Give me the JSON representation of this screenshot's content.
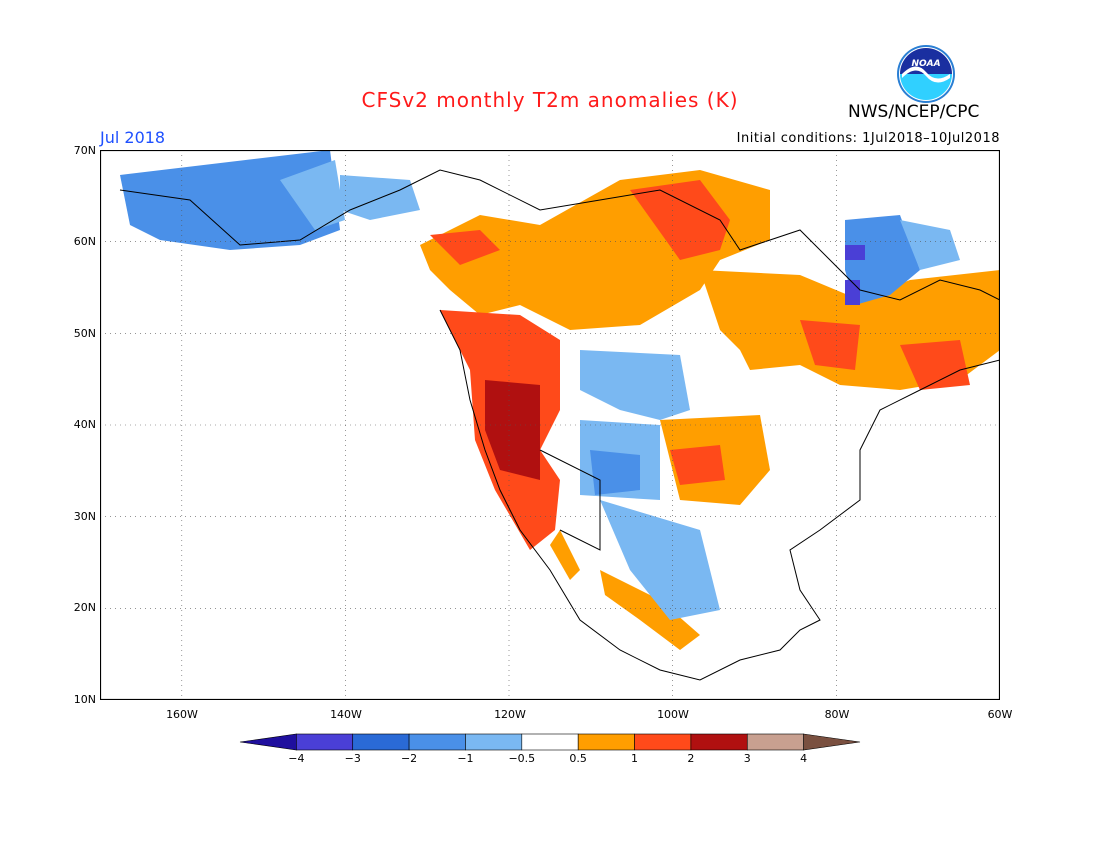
{
  "title": "CFSv2 monthly T2m anomalies (K)",
  "agency": "NWS/NCEP/CPC",
  "logo_text": "NOAA",
  "month": "Jul 2018",
  "initial_conditions": "Initial conditions: 1Jul2018–10Jul2018",
  "lat_labels": [
    "70N",
    "60N",
    "50N",
    "40N",
    "30N",
    "20N",
    "10N"
  ],
  "lon_labels": [
    "160W",
    "140W",
    "120W",
    "100W",
    "80W",
    "60W"
  ],
  "colorbar": {
    "ticks": [
      "−4",
      "−3",
      "−2",
      "−1",
      "−0.5",
      "0.5",
      "1",
      "2",
      "3",
      "4"
    ],
    "colors": [
      "#1f0f9e",
      "#4a3fd6",
      "#2a6ad6",
      "#4a90e8",
      "#7ab8f2",
      "#ffffff",
      "#ff9e00",
      "#ff4a1a",
      "#b01010",
      "#c8a090",
      "#7a5040"
    ]
  },
  "colors": {
    "title": "#ff1a1a",
    "month": "#1e50ff",
    "land_outline": "#000000",
    "grid": "#555555"
  }
}
